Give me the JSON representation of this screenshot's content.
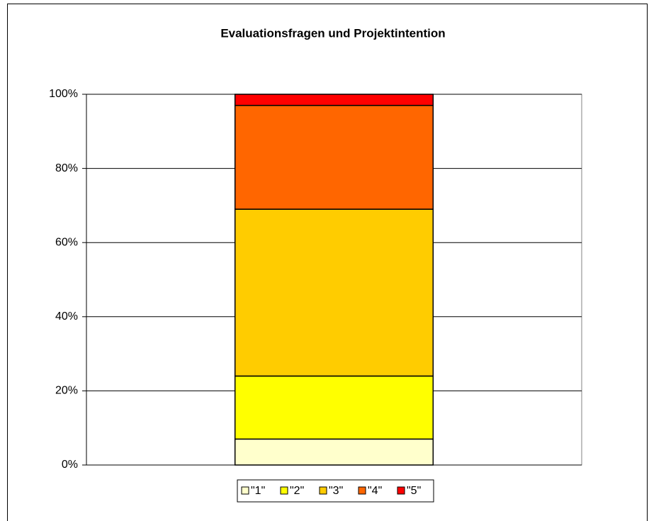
{
  "chart_data": {
    "type": "stacked_bar_100",
    "title": "Evaluationsfragen und Projektintention",
    "categories": [
      null
    ],
    "series": [
      {
        "name": "\"1\"",
        "color": "#ffffcc",
        "values": [
          7
        ]
      },
      {
        "name": "\"2\"",
        "color": "#ffff00",
        "values": [
          17
        ]
      },
      {
        "name": "\"3\"",
        "color": "#ffcc00",
        "values": [
          45
        ]
      },
      {
        "name": "\"4\"",
        "color": "#ff6600",
        "values": [
          28
        ]
      },
      {
        "name": "\"5\"",
        "color": "#ff0000",
        "values": [
          3
        ]
      }
    ],
    "ylim": [
      0,
      100
    ],
    "yticks": [
      {
        "value": 0,
        "label": "0%"
      },
      {
        "value": 20,
        "label": "20%"
      },
      {
        "value": 40,
        "label": "40%"
      },
      {
        "value": 60,
        "label": "60%"
      },
      {
        "value": 80,
        "label": "80%"
      },
      {
        "value": 100,
        "label": "100%"
      }
    ],
    "grid": true,
    "legend": "bottom"
  }
}
